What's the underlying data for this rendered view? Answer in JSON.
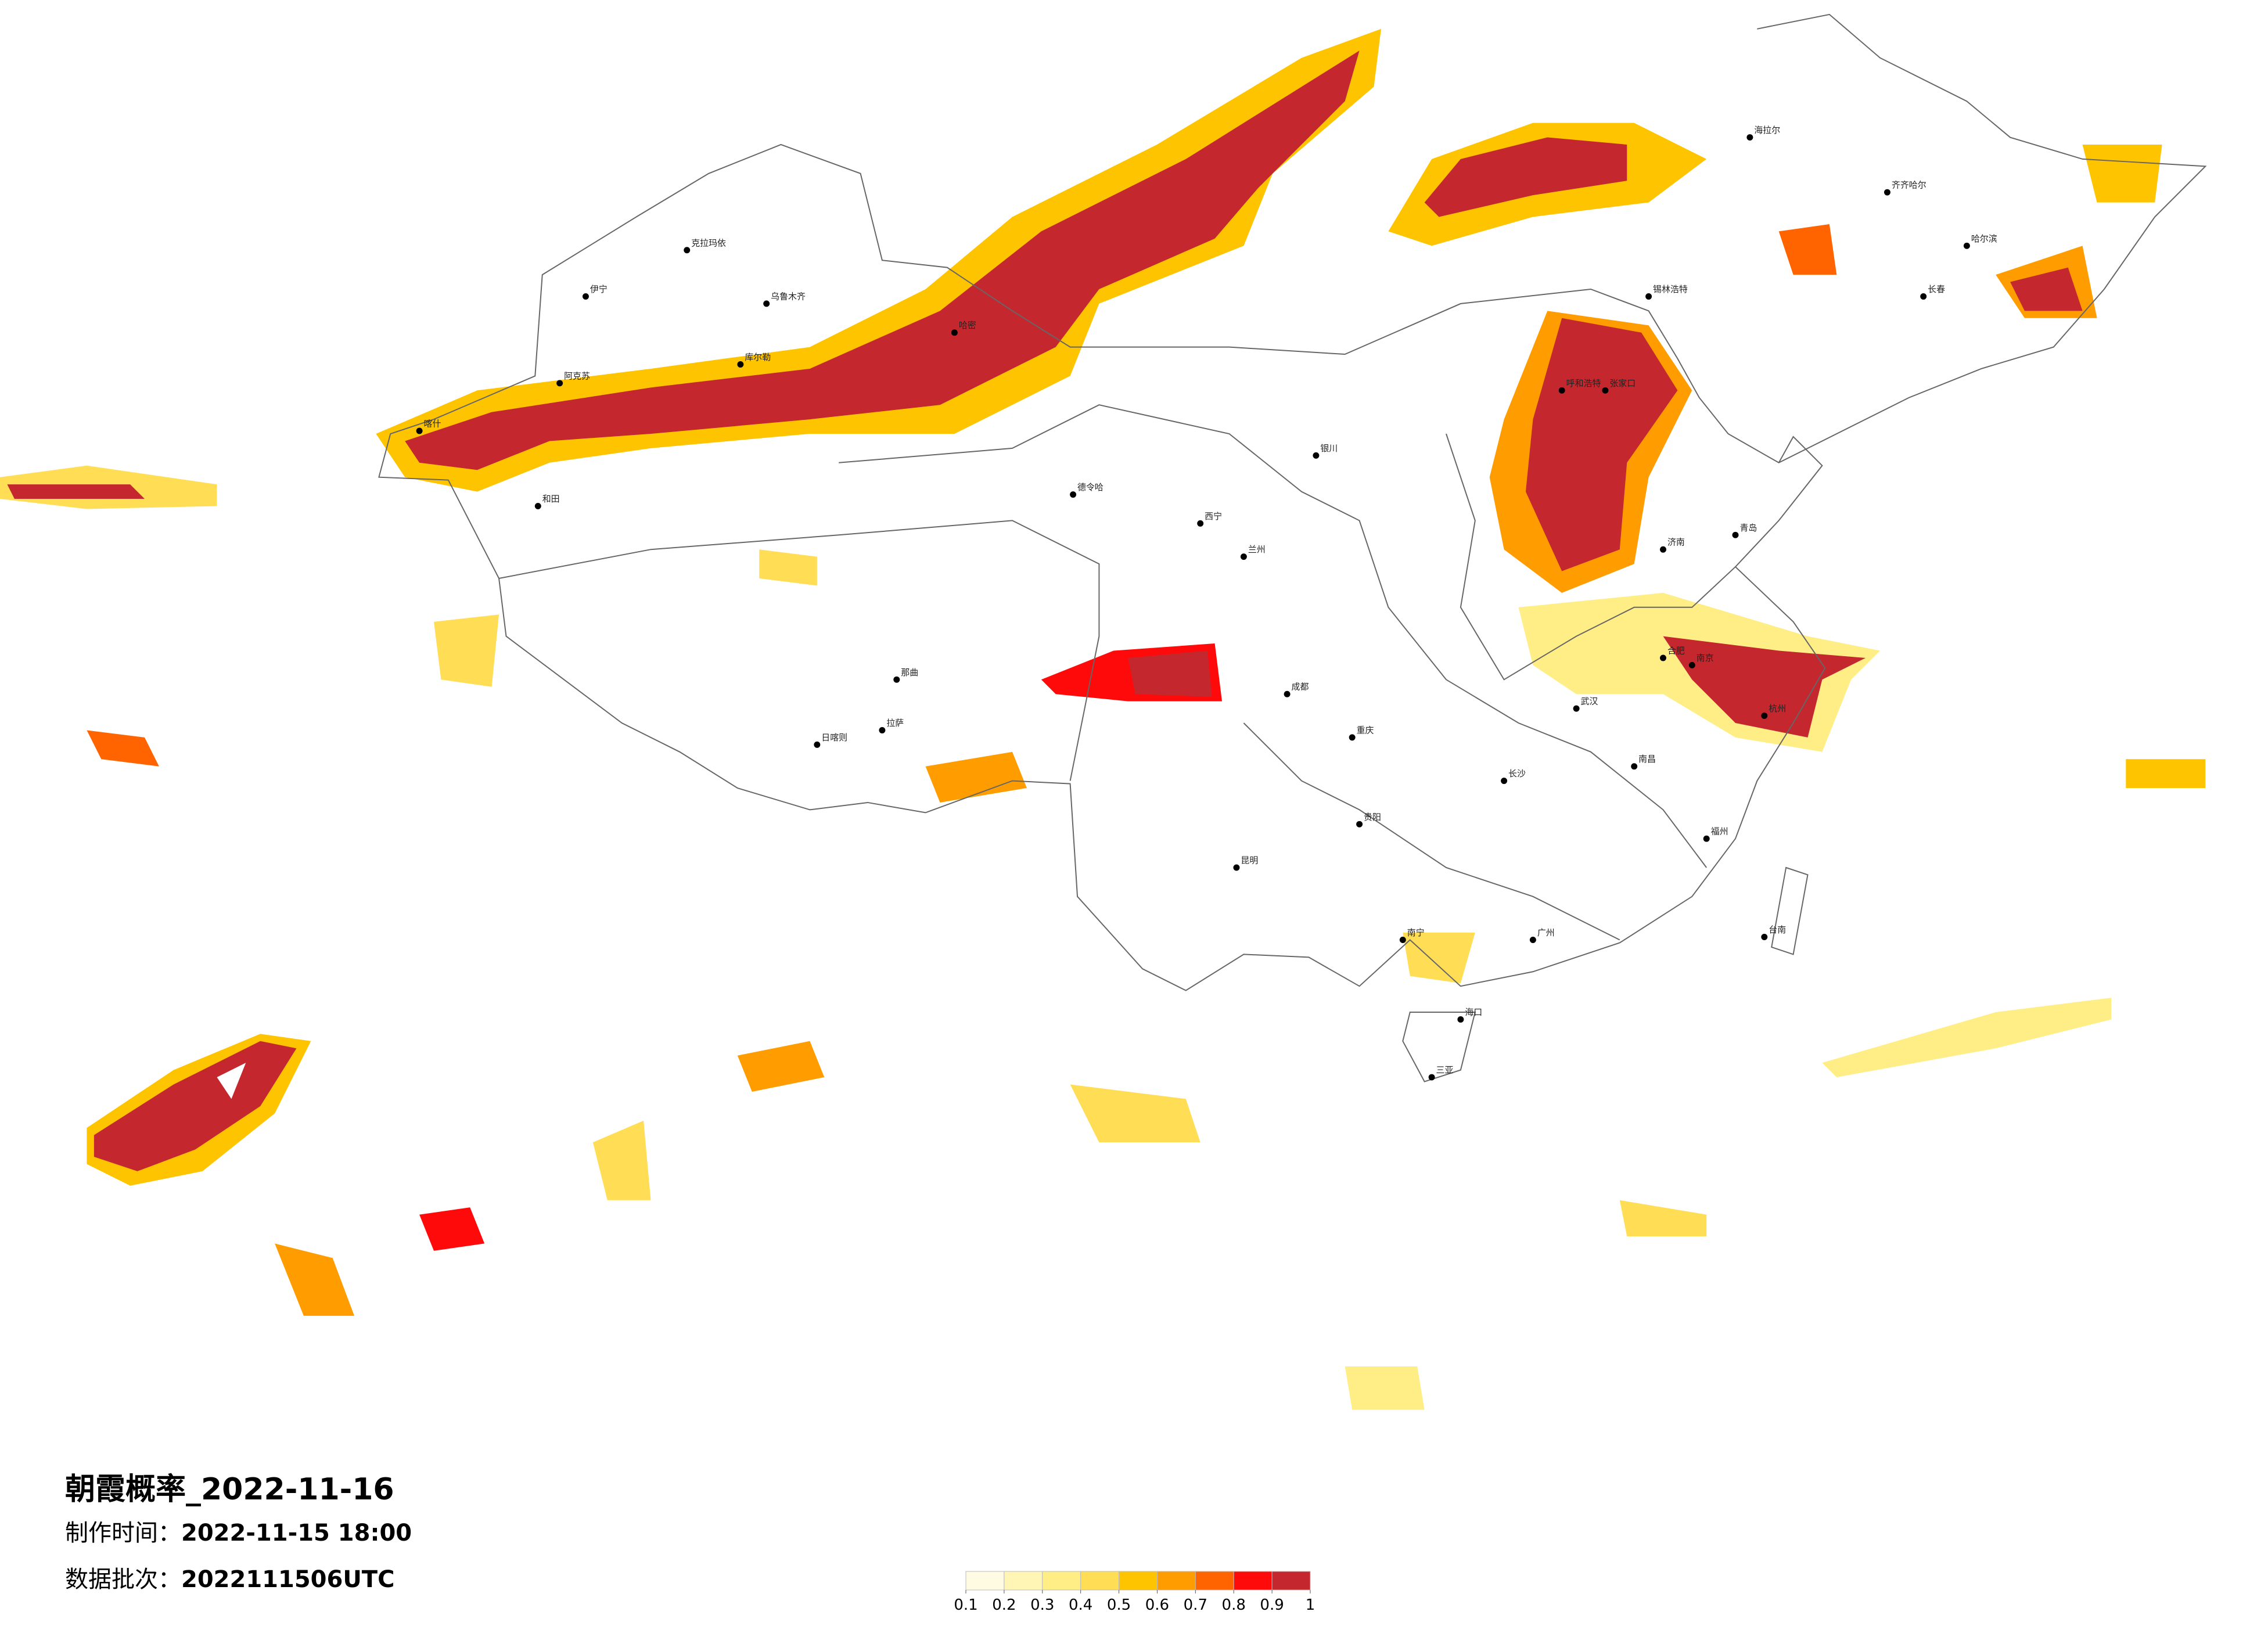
{
  "title": "朝霞概率_2022-11-16",
  "production_time": {
    "label": "制作时间：",
    "value": "2022-11-15 18:00"
  },
  "data_batch": {
    "label": "数据批次：",
    "value": "2022111506UTC"
  },
  "legend": {
    "colors": [
      "#fffbe3",
      "#fff5b5",
      "#ffee85",
      "#ffdd55",
      "#ffc400",
      "#ff9d00",
      "#ff6400",
      "#ff0a0a",
      "#c4282e"
    ],
    "ticks": [
      0.1,
      0.2,
      0.3,
      0.4,
      0.5,
      0.6,
      0.7,
      0.8,
      0.9,
      1
    ]
  },
  "cities": [
    "克拉玛依",
    "伊宁",
    "乌鲁木齐",
    "库尔勒",
    "阿克苏",
    "喀什",
    "和田",
    "哈密",
    "德令哈",
    "西宁",
    "兰州",
    "银川",
    "呼和浩特",
    "锡林浩特",
    "海拉尔",
    "齐齐哈尔",
    "哈尔滨",
    "长春",
    "张家口",
    "拉萨",
    "日喀则",
    "那曲",
    "成都",
    "重庆",
    "昆明",
    "贵阳",
    "南宁",
    "广州",
    "长沙",
    "武汉",
    "南京",
    "杭州",
    "福州",
    "台南",
    "海口",
    "三亚",
    "济南",
    "青岛",
    "南昌",
    "合肥"
  ]
}
